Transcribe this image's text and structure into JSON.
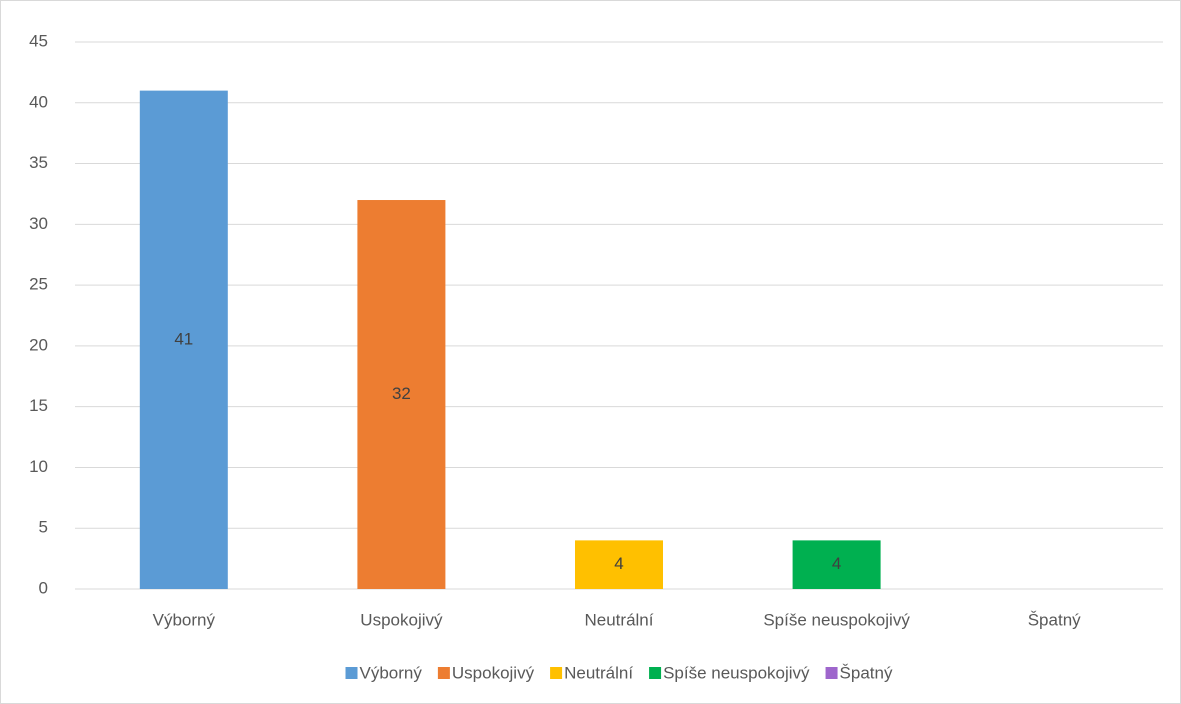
{
  "chart_data": {
    "type": "bar",
    "categories": [
      "Výborný",
      "Uspokojivý",
      "Neutrální",
      "Spíše neuspokojivý",
      "Špatný"
    ],
    "values": [
      41,
      32,
      4,
      4,
      0
    ],
    "colors": [
      "#5b9bd5",
      "#ed7d31",
      "#ffc000",
      "#00b050",
      "#9e66cc"
    ],
    "ylim": [
      0,
      45
    ],
    "yticks": [
      0,
      5,
      10,
      15,
      20,
      25,
      30,
      35,
      40,
      45
    ],
    "grid": true,
    "legend": "bottom",
    "data_labels": true
  }
}
